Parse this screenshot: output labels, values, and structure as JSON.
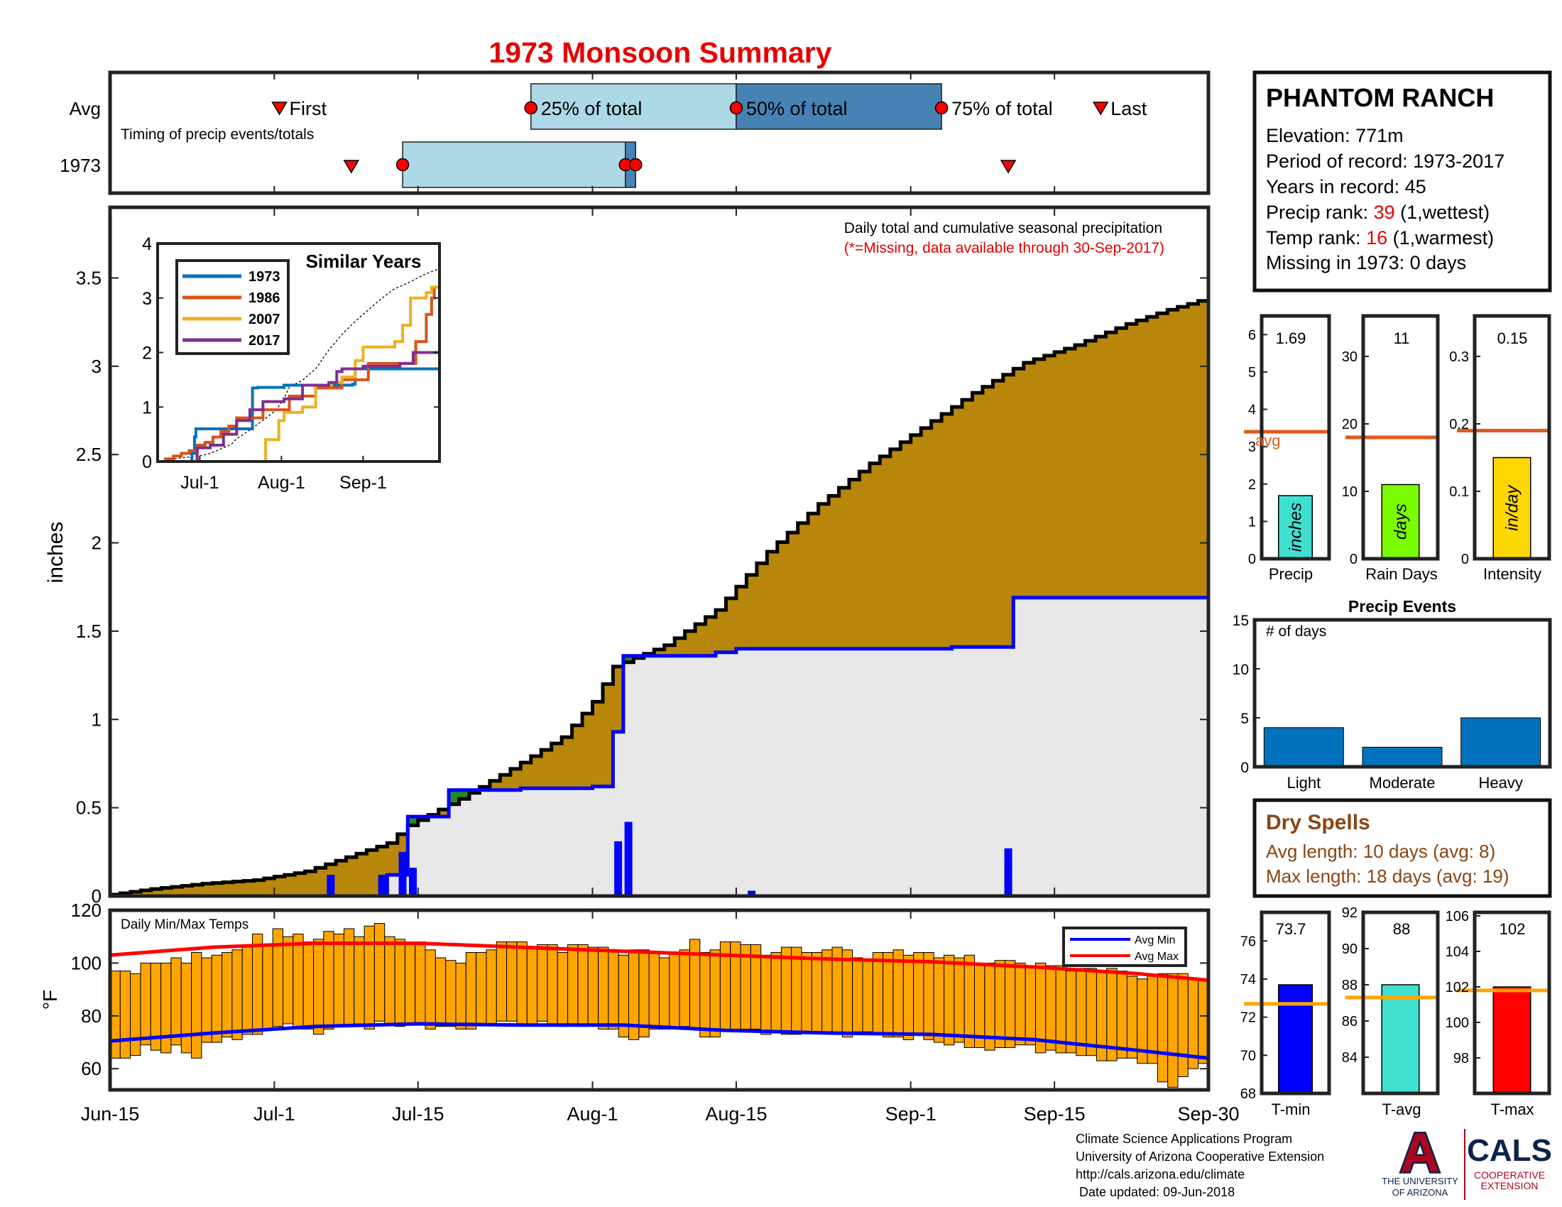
{
  "colors": {
    "title_red": "#e60000",
    "cum_brown": "#b8860b",
    "cum_green": "#228b22",
    "year_blue": "#0000ff",
    "light_blue": "#add8e6",
    "steel_blue": "#4682b4",
    "temp_orange": "#ffa500",
    "avg_line": "#e05a1e",
    "dry_brown": "#8b4513",
    "ua_navy": "#0c234b",
    "ua_red": "#ab0520"
  },
  "title": "1973 Monsoon Summary",
  "timing_panel": {
    "avg_row_label": "Avg",
    "year_row_label": "1973",
    "subtitle": "Timing of precip events/totals",
    "labels": {
      "first": "First",
      "p25": "25% of total",
      "p50": "50% of total",
      "p75": "75% of total",
      "last": "Last"
    },
    "avg": {
      "first": 16.5,
      "p25": 41,
      "p50": 61,
      "p75": 81,
      "last": 96.5
    },
    "year": {
      "first": 23.5,
      "p25": 28.5,
      "p50": 50.2,
      "p75": 51.2,
      "last": 87.5
    }
  },
  "info_box": {
    "station": "PHANTOM RANCH",
    "elevation": "Elevation: 771m",
    "period": "Period of record: 1973-2017",
    "years": "Years in record: 45",
    "precip_rank_prefix": "Precip rank: ",
    "precip_rank": "39",
    "precip_rank_suffix": " (1,wettest)",
    "temp_rank_prefix": "Temp rank: ",
    "temp_rank": "16",
    "temp_rank_suffix": " (1,warmest)",
    "missing": "Missing in 1973: 0 days"
  },
  "main_chart": {
    "ylabel": "inches",
    "note1": "Daily total and cumulative seasonal precipitation",
    "note2": "(*=Missing, data available through 30-Sep-2017)",
    "x_ticks": [
      {
        "day": 0,
        "label": "Jun-15"
      },
      {
        "day": 16,
        "label": "Jul-1"
      },
      {
        "day": 30,
        "label": "Jul-15"
      },
      {
        "day": 47,
        "label": "Aug-1"
      },
      {
        "day": 61,
        "label": "Aug-15"
      },
      {
        "day": 78,
        "label": "Sep-1"
      },
      {
        "day": 92,
        "label": "Sep-15"
      },
      {
        "day": 107,
        "label": "Sep-30"
      }
    ],
    "y_ticks": [
      "0",
      "0.5",
      "1",
      "1.5",
      "2",
      "2.5",
      "3",
      "3.5"
    ],
    "ylim": [
      0,
      3.9
    ]
  },
  "chart_data": [
    {
      "type": "area",
      "title": "Daily total and cumulative seasonal precipitation",
      "ylabel": "inches",
      "xlim": [
        0,
        107
      ],
      "ylim": [
        0,
        3.9
      ],
      "avg_cumulative": {
        "x": [
          0,
          5,
          10,
          15,
          20,
          23,
          28,
          30,
          35,
          40,
          45,
          48,
          50,
          55,
          60,
          65,
          70,
          75,
          80,
          85,
          90,
          95,
          100,
          104,
          107
        ],
        "y": [
          0.0,
          0.04,
          0.07,
          0.09,
          0.14,
          0.2,
          0.3,
          0.4,
          0.55,
          0.72,
          0.9,
          1.1,
          1.3,
          1.42,
          1.62,
          1.95,
          2.22,
          2.45,
          2.65,
          2.85,
          3.02,
          3.12,
          3.24,
          3.32,
          3.37
        ]
      },
      "year_cumulative": {
        "x": [
          0,
          23,
          27,
          28,
          29,
          33,
          35,
          40,
          47,
          48,
          49,
          50,
          51,
          53,
          59,
          60,
          61,
          66,
          73,
          78,
          82,
          83,
          87,
          88,
          100,
          107
        ],
        "y": [
          0.0,
          0.0,
          0.12,
          0.12,
          0.45,
          0.6,
          0.6,
          0.61,
          0.62,
          0.62,
          0.93,
          1.36,
          1.36,
          1.36,
          1.38,
          1.38,
          1.4,
          1.4,
          1.4,
          1.4,
          1.41,
          1.41,
          1.41,
          1.69,
          1.69,
          1.69
        ]
      },
      "daily_bars": [
        {
          "x": 21.5,
          "y": 0.12
        },
        {
          "x": 26.5,
          "y": 0.12
        },
        {
          "x": 28.5,
          "y": 0.25
        },
        {
          "x": 29.5,
          "y": 0.16
        },
        {
          "x": 49.5,
          "y": 0.31
        },
        {
          "x": 50.5,
          "y": 0.42
        },
        {
          "x": 62.5,
          "y": 0.03
        },
        {
          "x": 87.5,
          "y": 0.27
        }
      ]
    },
    {
      "type": "line",
      "title": "Similar Years",
      "x_ticks": [
        "Jul-1",
        "Aug-1",
        "Sep-1"
      ],
      "y_ticks": [
        "0",
        "1",
        "2",
        "3",
        "4"
      ],
      "ylim": [
        0,
        4
      ],
      "series": [
        {
          "name": "1973",
          "x": [
            0,
            8,
            13,
            14,
            14.5,
            35,
            36,
            37,
            38,
            48,
            70,
            74,
            75,
            90,
            107
          ],
          "y": [
            0,
            0,
            0.15,
            0.45,
            0.6,
            0.6,
            1.35,
            1.35,
            1.36,
            1.4,
            1.4,
            1.42,
            1.7,
            1.7,
            1.7
          ]
        },
        {
          "name": "1986",
          "x": [
            0,
            3,
            6,
            9,
            12,
            15,
            18,
            21,
            24,
            27,
            30,
            40,
            50,
            60,
            70,
            80,
            90,
            98,
            102,
            104,
            105,
            107
          ],
          "y": [
            0,
            0.05,
            0.1,
            0.15,
            0.2,
            0.3,
            0.35,
            0.45,
            0.55,
            0.65,
            0.8,
            0.95,
            1.2,
            1.35,
            1.5,
            1.8,
            1.8,
            2.2,
            2.7,
            3.0,
            3.2,
            3.2
          ]
        },
        {
          "name": "2007",
          "x": [
            0,
            38,
            41,
            46,
            48,
            55,
            60,
            66,
            70,
            75,
            78,
            90,
            93,
            96,
            102,
            104,
            107
          ],
          "y": [
            0,
            0,
            0.4,
            0.75,
            0.9,
            1.0,
            1.4,
            1.45,
            1.55,
            1.85,
            2.1,
            2.2,
            2.5,
            3.0,
            3.1,
            3.2,
            3.2
          ]
        },
        {
          "name": "2017",
          "x": [
            0,
            10,
            15,
            20,
            25,
            30,
            35,
            40,
            48,
            55,
            60,
            65,
            68,
            70,
            78,
            88,
            92,
            97,
            100,
            107
          ],
          "y": [
            0,
            0,
            0.25,
            0.3,
            0.5,
            0.75,
            0.95,
            1.1,
            1.15,
            1.4,
            1.4,
            1.45,
            1.65,
            1.7,
            1.75,
            1.75,
            1.8,
            2.0,
            2.0,
            2.0
          ]
        }
      ]
    },
    {
      "type": "bar",
      "title": "Daily Min/Max Temps",
      "ylabel": "°F",
      "ylim": [
        52,
        120
      ],
      "y_ticks": [
        "60",
        "80",
        "100",
        "120"
      ],
      "series": [
        {
          "name": "Avg Min",
          "x": [
            0,
            10,
            20,
            30,
            40,
            50,
            60,
            70,
            80,
            90,
            100,
            107
          ],
          "y": [
            70.5,
            73.5,
            76,
            77,
            76.5,
            76.5,
            74.5,
            73.5,
            73,
            71,
            67,
            64
          ]
        },
        {
          "name": "Avg Max",
          "x": [
            0,
            10,
            20,
            30,
            40,
            50,
            60,
            70,
            80,
            90,
            100,
            107
          ],
          "y": [
            103,
            106,
            107.5,
            107.5,
            106,
            104.5,
            103,
            101.5,
            100.5,
            98.5,
            96,
            93.5
          ]
        }
      ],
      "daily_min": [
        64,
        64,
        65,
        69,
        67,
        66,
        69,
        66,
        64,
        70,
        70,
        72,
        71,
        73,
        73,
        75,
        76,
        77,
        75,
        75,
        73,
        75,
        76,
        76,
        77,
        75,
        78,
        77,
        76,
        77,
        77,
        75,
        76,
        76,
        75,
        75,
        77,
        77,
        78,
        78,
        77,
        77,
        78,
        77,
        76,
        77,
        76,
        77,
        75,
        75,
        72,
        71,
        72,
        75,
        75,
        75,
        76,
        75,
        72,
        72,
        74,
        75,
        75,
        75,
        73,
        74,
        73,
        73,
        74,
        74,
        74,
        73,
        72,
        74,
        74,
        73,
        72,
        72,
        71,
        73,
        71,
        70,
        69,
        70,
        68,
        68,
        67,
        68,
        68,
        69,
        69,
        66,
        67,
        66,
        66,
        65,
        65,
        63,
        63,
        64,
        64,
        62,
        62,
        55,
        53,
        57,
        60,
        62
      ],
      "daily_max": [
        97,
        97,
        96,
        100,
        100,
        100,
        102,
        100,
        104,
        102,
        103,
        104,
        105,
        106,
        111,
        107,
        113,
        110,
        111,
        108,
        109,
        112,
        111,
        113,
        110,
        114,
        115,
        110,
        109,
        108,
        108,
        105,
        102,
        101,
        100,
        104,
        104,
        105,
        108,
        108,
        108,
        106,
        107,
        107,
        104,
        107,
        107,
        106,
        106,
        105,
        103,
        105,
        105,
        104,
        102,
        104,
        105,
        109,
        104,
        105,
        108,
        108,
        107,
        107,
        103,
        104,
        106,
        106,
        104,
        104,
        105,
        106,
        105,
        102,
        101,
        104,
        104,
        105,
        103,
        104,
        104,
        102,
        103,
        102,
        103,
        100,
        100,
        101,
        101,
        100,
        99,
        100,
        99,
        99,
        97,
        98,
        98,
        97,
        98,
        97,
        95,
        94,
        95,
        96,
        96,
        96,
        94,
        94
      ]
    },
    {
      "type": "bar",
      "title": "Precip",
      "categories": [
        "Precip"
      ],
      "values": [
        1.69
      ],
      "avg": 3.4,
      "ylim": [
        0,
        6.5
      ],
      "y_ticks": [
        "0",
        "1",
        "2",
        "3",
        "4",
        "5",
        "6"
      ]
    },
    {
      "type": "bar",
      "title": "Rain Days",
      "categories": [
        "Rain Days"
      ],
      "values": [
        11
      ],
      "avg": 18,
      "ylim": [
        0,
        36
      ],
      "y_ticks": [
        "0",
        "10",
        "20",
        "30"
      ]
    },
    {
      "type": "bar",
      "title": "Intensity",
      "categories": [
        "Intensity"
      ],
      "values": [
        0.15
      ],
      "avg": 0.19,
      "ylim": [
        0,
        0.36
      ],
      "y_ticks": [
        "0",
        "0.1",
        "0.2",
        "0.3"
      ]
    },
    {
      "type": "bar",
      "title": "Precip Events",
      "ylabel": "# of days",
      "categories": [
        "Light",
        "Moderate",
        "Heavy"
      ],
      "values": [
        4,
        2,
        5
      ],
      "ylim": [
        0,
        15
      ],
      "y_ticks": [
        "0",
        "5",
        "10",
        "15"
      ]
    },
    {
      "type": "bar",
      "title": "T-min",
      "categories": [
        "T-min"
      ],
      "values": [
        73.7
      ],
      "avg": 72.7,
      "ylim": [
        68,
        77.5
      ],
      "y_ticks": [
        "68",
        "70",
        "72",
        "74",
        "76"
      ]
    },
    {
      "type": "bar",
      "title": "T-avg",
      "categories": [
        "T-avg"
      ],
      "values": [
        88
      ],
      "avg": 87.3,
      "ylim": [
        82,
        92
      ],
      "y_ticks": [
        "84",
        "86",
        "88",
        "90",
        "92"
      ]
    },
    {
      "type": "bar",
      "title": "T-max",
      "categories": [
        "T-max"
      ],
      "values": [
        102
      ],
      "avg": 101.8,
      "ylim": [
        96,
        106.2
      ],
      "y_ticks": [
        "98",
        "100",
        "102",
        "104",
        "106"
      ]
    }
  ],
  "small_bars": {
    "precip": {
      "value_label": "1.69",
      "bar_label": "inches",
      "avg_label": "avg",
      "xlabel": "Precip"
    },
    "raindays": {
      "value_label": "11",
      "bar_label": "days",
      "xlabel": "Rain Days"
    },
    "intensity": {
      "value_label": "0.15",
      "bar_label": "in/day",
      "xlabel": "Intensity"
    }
  },
  "events": {
    "title": "Precip Events",
    "ylabel": "# of days",
    "categories": [
      "Light",
      "Moderate",
      "Heavy"
    ]
  },
  "dry_spells": {
    "title": "Dry Spells",
    "avg_length": "Avg length: 10 days (avg: 8)",
    "max_length": "Max length: 18 days (avg: 19)"
  },
  "temps": {
    "label": "Daily Min/Max Temps",
    "ylabel": "°F",
    "legend_min": "Avg Min",
    "legend_max": "Avg Max"
  },
  "temp_bars": {
    "tmin": {
      "value_label": "73.7",
      "xlabel": "T-min"
    },
    "tavg": {
      "value_label": "88",
      "xlabel": "T-avg"
    },
    "tmax": {
      "value_label": "102",
      "xlabel": "T-max"
    }
  },
  "footer": {
    "line1": "Climate Science Applications Program",
    "line2": "University of Arizona Cooperative Extension",
    "line3": "http://cals.arizona.edu/climate",
    "line4": " Date updated: 09-Jun-2018"
  },
  "logos": {
    "ua_letter": "A",
    "ua_text1": "THE UNIVERSITY",
    "ua_text2": "OF ARIZONA",
    "cals_title": "CALS",
    "cals_text1": "COOPERATIVE",
    "cals_text2": "EXTENSION"
  }
}
